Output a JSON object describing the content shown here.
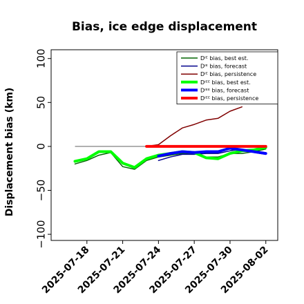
{
  "chart_data": {
    "type": "line",
    "title": "Bias, ice edge displacement",
    "xlabel": "",
    "ylabel": "Displacement bias (km)",
    "x_ticks": [
      "2025-07-18",
      "2025-07-21",
      "2025-07-24",
      "2025-07-27",
      "2025-07-30",
      "2025-08-02"
    ],
    "x_tick_colors": [
      "#000000",
      "#000000",
      "#228B22",
      "#000000",
      "#000000",
      "#000000"
    ],
    "xlim": [
      "2025-07-15",
      "2025-08-03"
    ],
    "ylim": [
      -107,
      110
    ],
    "y_ticks": [
      100,
      50,
      0,
      -50,
      -100
    ],
    "y_tick_labels": [
      "100",
      "50",
      "0",
      "−50",
      "−100"
    ],
    "grid": false,
    "legend_position": "top-right",
    "reference_line": {
      "y": 0,
      "x_start": "2025-07-17",
      "x_end": "2025-08-02",
      "color": "#808080"
    },
    "series": [
      {
        "name": "Dᴵᴱ bias, best est.",
        "color": "#006400",
        "width": 1.5,
        "x": [
          "2025-07-17",
          "2025-07-18",
          "2025-07-19",
          "2025-07-20",
          "2025-07-21",
          "2025-07-22",
          "2025-07-23",
          "2025-07-24",
          "2025-07-25",
          "2025-07-26",
          "2025-07-27",
          "2025-07-28",
          "2025-07-29",
          "2025-07-30",
          "2025-07-31",
          "2025-08-01",
          "2025-08-02"
        ],
        "values": [
          -20,
          -16,
          -10,
          -7,
          -23,
          -26,
          -16,
          -12,
          -10,
          -8,
          -8,
          -12,
          -12,
          -8,
          -8,
          -6,
          -3
        ]
      },
      {
        "name": "Dᴵᴱ bias, forecast",
        "color": "#00008B",
        "width": 1.5,
        "x": [
          "2025-07-24",
          "2025-07-25",
          "2025-07-26",
          "2025-07-27",
          "2025-07-28",
          "2025-07-29",
          "2025-07-30",
          "2025-07-31",
          "2025-08-01",
          "2025-08-02"
        ],
        "values": [
          -16,
          -12,
          -9,
          -9,
          -8,
          -8,
          -5,
          -3,
          -7,
          -9
        ]
      },
      {
        "name": "Dᴵᴱ bias, persistence",
        "color": "#800000",
        "width": 1.5,
        "x": [
          "2025-07-23",
          "2025-07-24",
          "2025-07-25",
          "2025-07-26",
          "2025-07-27",
          "2025-07-28",
          "2025-07-29",
          "2025-07-30",
          "2025-07-31"
        ],
        "values": [
          0,
          2,
          12,
          21,
          25,
          30,
          32,
          40,
          45
        ]
      },
      {
        "name": "Dᴵᴱᴱ bias, best est.",
        "color": "#00FF00",
        "width": 4,
        "x": [
          "2025-07-17",
          "2025-07-18",
          "2025-07-19",
          "2025-07-20",
          "2025-07-21",
          "2025-07-22",
          "2025-07-23",
          "2025-07-24",
          "2025-07-25",
          "2025-07-26",
          "2025-07-27",
          "2025-07-28",
          "2025-07-29",
          "2025-07-30",
          "2025-07-31",
          "2025-08-01",
          "2025-08-02"
        ],
        "values": [
          -17,
          -14,
          -6,
          -6,
          -19,
          -24,
          -14,
          -10,
          -8,
          -6,
          -7,
          -13,
          -14,
          -8,
          -5,
          -4,
          -1
        ]
      },
      {
        "name": "Dᴵᴱᴱ bias, forecast",
        "color": "#0000FF",
        "width": 4,
        "x": [
          "2025-07-24",
          "2025-07-25",
          "2025-07-26",
          "2025-07-27",
          "2025-07-28",
          "2025-07-29",
          "2025-07-30",
          "2025-07-31",
          "2025-08-01",
          "2025-08-02"
        ],
        "values": [
          -11,
          -8,
          -6,
          -7,
          -6,
          -6,
          -2,
          -4,
          -6,
          -8
        ]
      },
      {
        "name": "Dᴵᴱᴱ bias, persistence",
        "color": "#FF0000",
        "width": 4,
        "x": [
          "2025-07-23",
          "2025-07-24",
          "2025-07-25",
          "2025-07-26",
          "2025-07-27",
          "2025-07-28",
          "2025-07-29",
          "2025-07-30",
          "2025-07-31",
          "2025-08-01",
          "2025-08-02"
        ],
        "values": [
          0,
          0,
          0,
          0,
          0,
          0,
          0,
          0,
          0,
          0,
          0
        ]
      }
    ]
  }
}
